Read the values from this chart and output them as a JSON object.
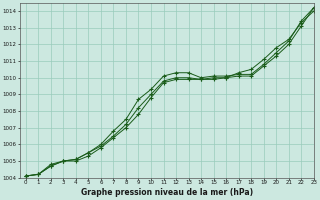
{
  "xlabel": "Graphe pression niveau de la mer (hPa)",
  "ylim": [
    1004,
    1014.5
  ],
  "xlim": [
    -0.5,
    23
  ],
  "yticks": [
    1004,
    1005,
    1006,
    1007,
    1008,
    1009,
    1010,
    1011,
    1012,
    1013,
    1014
  ],
  "xticks": [
    0,
    1,
    2,
    3,
    4,
    5,
    6,
    7,
    8,
    9,
    10,
    11,
    12,
    13,
    14,
    15,
    16,
    17,
    18,
    19,
    20,
    21,
    22,
    23
  ],
  "background_color": "#cce8e0",
  "grid_color": "#99ccbb",
  "line_color": "#1a5c1a",
  "line1_x": [
    0,
    1,
    2,
    3,
    4,
    5,
    6,
    7,
    8,
    9,
    10,
    11,
    12,
    13,
    14,
    15,
    16,
    17,
    18,
    19,
    20,
    21,
    22,
    23
  ],
  "line1": [
    1004.1,
    1004.2,
    1004.8,
    1005.0,
    1005.1,
    1005.5,
    1006.0,
    1006.8,
    1007.5,
    1008.7,
    1009.3,
    1010.1,
    1010.3,
    1010.3,
    1010.0,
    1010.1,
    1010.1,
    1010.2,
    1010.2,
    1010.8,
    1011.5,
    1012.2,
    1013.4,
    1014.2
  ],
  "line2_x": [
    0,
    1,
    2,
    3,
    4,
    5,
    6,
    7,
    8,
    9,
    10,
    11,
    12,
    13,
    14,
    15,
    16,
    17,
    18,
    19,
    20,
    21,
    22,
    23
  ],
  "line2": [
    1004.1,
    1004.2,
    1004.7,
    1005.0,
    1005.0,
    1005.3,
    1005.8,
    1006.4,
    1007.0,
    1007.8,
    1008.8,
    1009.7,
    1009.9,
    1009.9,
    1009.9,
    1009.9,
    1010.0,
    1010.1,
    1010.1,
    1010.7,
    1011.3,
    1012.0,
    1013.1,
    1014.2
  ],
  "line3_x": [
    0,
    1,
    2,
    3,
    4,
    5,
    6,
    7,
    8,
    9,
    10,
    11,
    12,
    13,
    14,
    15,
    16,
    17,
    18,
    19,
    20,
    21,
    22,
    23
  ],
  "line3": [
    1004.1,
    1004.2,
    1004.7,
    1005.0,
    1005.1,
    1005.5,
    1005.9,
    1006.5,
    1007.2,
    1008.2,
    1009.0,
    1009.8,
    1010.0,
    1010.0,
    1009.9,
    1010.0,
    1010.0,
    1010.3,
    1010.5,
    1011.1,
    1011.8,
    1012.3,
    1013.3,
    1014.0
  ]
}
